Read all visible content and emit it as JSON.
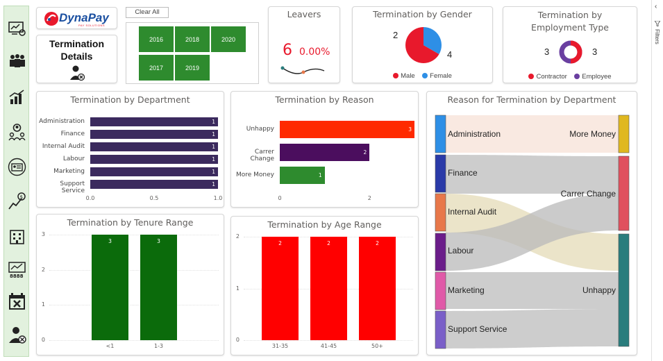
{
  "brand": {
    "name": "DynaPay",
    "tagline": "PAY SOLUTIONS"
  },
  "page_title": {
    "line1": "Termination",
    "line2": "Details"
  },
  "clear_all": "Clear All",
  "years": [
    "2016",
    "2018",
    "2020",
    "2017",
    "2019"
  ],
  "leavers": {
    "title": "Leavers",
    "count": "6",
    "percent": "0.00%"
  },
  "gender": {
    "title": "Termination by Gender",
    "left_value": "2",
    "right_value": "4",
    "legend": [
      "Male",
      "Female"
    ],
    "colors": [
      "#e8192c",
      "#2e8fe6"
    ]
  },
  "employment": {
    "title": "Termination by Employment Type",
    "left_value": "3",
    "right_value": "3",
    "legend": [
      "Contractor",
      "Employee"
    ],
    "colors": [
      "#e8192c",
      "#6a3fa0"
    ]
  },
  "filters_label": "Filters",
  "department_chart": {
    "title": "Termination by Department",
    "categories": [
      "Administration",
      "Finance",
      "Internal Audit",
      "Labour",
      "Marketing",
      "Support Service"
    ],
    "values": [
      1,
      1,
      1,
      1,
      1,
      1
    ],
    "ticks": [
      "0.0",
      "0.5",
      "1.0"
    ],
    "color": "#3b2a5e"
  },
  "reason_chart": {
    "title": "Termination by Reason",
    "categories": [
      "Unhappy",
      "Carrer Change",
      "More Money"
    ],
    "values": [
      3,
      2,
      1
    ],
    "colors": [
      "#ff2a00",
      "#4b0e5e",
      "#2e8b2e"
    ],
    "ticks": [
      "0",
      "2"
    ]
  },
  "tenure_chart": {
    "title": "Termination by Tenure Range",
    "categories": [
      "<1",
      "1-3"
    ],
    "values": [
      3,
      3
    ],
    "ticks": [
      "0",
      "1",
      "2",
      "3"
    ],
    "color": "#0b6b0b"
  },
  "age_chart": {
    "title": "Termination by Age Range",
    "categories": [
      "31-35",
      "41-45",
      "50+"
    ],
    "values": [
      2,
      2,
      2
    ],
    "ticks": [
      "0",
      "1",
      "2"
    ],
    "color": "#ff0000"
  },
  "sankey": {
    "title": "Reason for Termination by Department",
    "sources": [
      "Administration",
      "Finance",
      "Internal Audit",
      "Labour",
      "Marketing",
      "Support Service"
    ],
    "targets": [
      "More Money",
      "Carrer Change",
      "Unhappy"
    ],
    "source_colors": [
      "#2e8fe6",
      "#2a3aa8",
      "#e8784a",
      "#6b1d8a",
      "#e05aa8",
      "#7a5fc8"
    ],
    "target_colors": [
      "#e0b820",
      "#e0505e",
      "#2a7d7d"
    ]
  },
  "nav_icons": [
    "analytics-icon",
    "people-icon",
    "growth-chart-icon",
    "employee-network-icon",
    "id-card-icon",
    "finance-trend-icon",
    "building-icon",
    "dashboard-icon",
    "calendar-cancel-icon",
    "user-remove-icon"
  ]
}
